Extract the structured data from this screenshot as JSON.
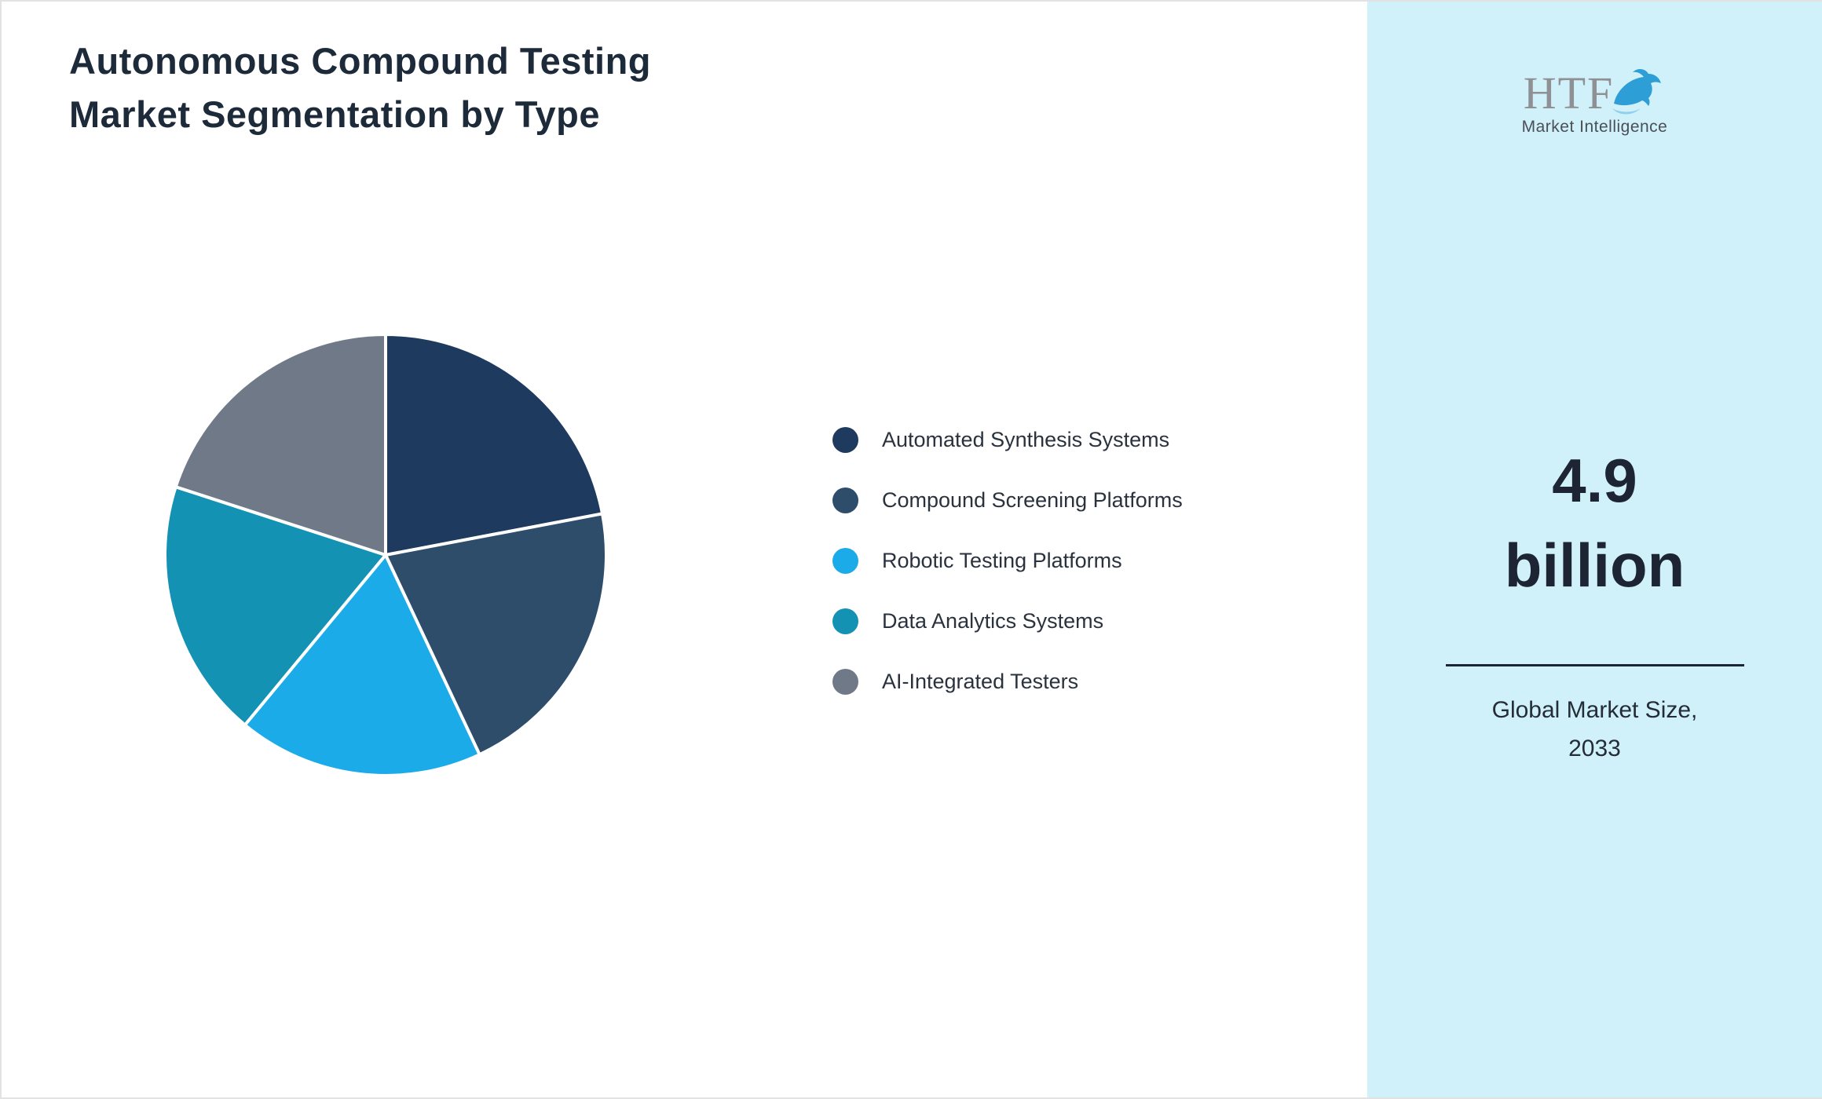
{
  "page": {
    "title_lines": [
      "Autonomous Compound Testing",
      "Market Segmentation by Type"
    ]
  },
  "chart_data": {
    "type": "pie",
    "title": "Autonomous Compound Testing Market Segmentation by Type",
    "labels": [
      "Automated Synthesis Systems",
      "Compound Screening Platforms",
      "Robotic Testing Platforms",
      "Data Analytics Systems",
      "AI-Integrated Testers"
    ],
    "values": [
      22,
      21,
      18,
      19,
      20
    ],
    "colors": [
      "#1f3a5f",
      "#2e4d6b",
      "#1babe8",
      "#1392b4",
      "#6f7987"
    ],
    "start_angle_deg": 0,
    "direction": "clockwise",
    "legend_position": "right",
    "slice_gap_color": "#ffffff"
  },
  "sidebar": {
    "logo": {
      "text": "HTF",
      "subtext": "Market Intelligence",
      "icon": "dolphin-icon",
      "accent_color": "#2e9fd6"
    },
    "headline_lines": [
      "4.9",
      "billion"
    ],
    "caption_lines": [
      "Global Market Size,",
      "2033"
    ]
  }
}
